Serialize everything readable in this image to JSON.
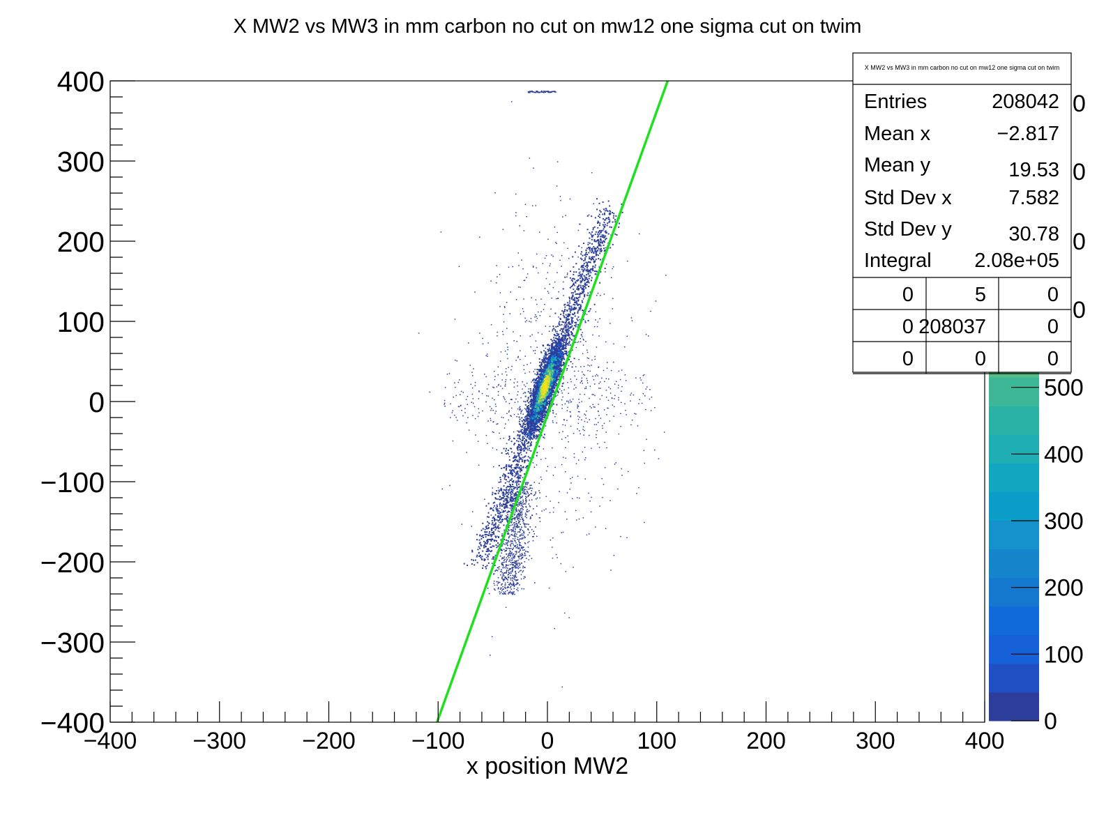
{
  "chart_data": {
    "type": "heatmap",
    "title": "X MW2 vs MW3 in mm carbon no cut on mw12 one sigma cut on twim",
    "xlabel": "x position MW2",
    "ylabel": "",
    "xlim": [
      -400,
      400
    ],
    "ylim": [
      -400,
      400
    ],
    "x_ticks": [
      "−400",
      "−300",
      "−200",
      "−100",
      "0",
      "100",
      "200",
      "300",
      "400"
    ],
    "y_ticks": [
      "−400",
      "−300",
      "−200",
      "−100",
      "0",
      "100",
      "200",
      "300",
      "400"
    ],
    "x_tick_values": [
      -400,
      -300,
      -200,
      -100,
      0,
      100,
      200,
      300,
      400
    ],
    "y_tick_values": [
      -400,
      -300,
      -200,
      -100,
      0,
      100,
      200,
      300,
      400
    ],
    "colorbar": {
      "min": 0,
      "max": 600,
      "ticks": [
        "0",
        "100",
        "200",
        "300",
        "400",
        "500"
      ],
      "tick_values": [
        0,
        100,
        200,
        300,
        400,
        500
      ],
      "right_tick_fragments": [
        "0",
        "0",
        "0",
        "0"
      ],
      "colors": [
        "#2c3e9a",
        "#1f4fc2",
        "#1660d8",
        "#106ad8",
        "#1478cf",
        "#1585cc",
        "#1592cb",
        "#0b9ec8",
        "#12a6c0",
        "#1eaeb4",
        "#2ab3a5",
        "#3cb896",
        "#56bc88"
      ]
    },
    "fit_line": {
      "name": "",
      "color": "#1ee01e",
      "points": [
        [
          -101,
          -400
        ],
        [
          110,
          400
        ]
      ]
    },
    "density": {
      "core_center": [
        -2.8,
        19.5
      ],
      "core_slope_dy_dx": 4.1,
      "max_color": "#f2e11a"
    },
    "stats_box": {
      "title": "X MW2 vs MW3 in mm carbon no cut on mw12 one sigma cut on twim",
      "rows": [
        {
          "label": "Entries",
          "value": "208042"
        },
        {
          "label": "Mean x",
          "value": "−2.817"
        },
        {
          "label": "Mean y",
          "value": "19.53"
        },
        {
          "label": "Std Dev x",
          "value": "7.582"
        },
        {
          "label": "Std Dev y",
          "value": "30.78"
        },
        {
          "label": "Integral",
          "value": "2.08e+05"
        }
      ],
      "grid": [
        [
          "0",
          "5",
          "0"
        ],
        [
          "0",
          "208037",
          "0"
        ],
        [
          "0",
          "0",
          "0"
        ]
      ]
    }
  }
}
